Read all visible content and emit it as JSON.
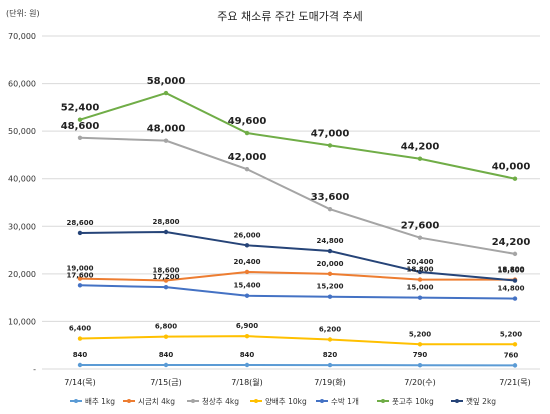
{
  "chart_data": {
    "type": "line",
    "title": "주요 채소류 주간 도매가격 추세",
    "unit_label": "(단위: 원)",
    "xlabel": "",
    "ylabel": "",
    "categories": [
      "7/14(목)",
      "7/15(금)",
      "7/18(월)",
      "7/19(화)",
      "7/20(수)",
      "7/21(목)"
    ],
    "ylim": [
      0,
      70000
    ],
    "yticks": [
      0,
      10000,
      20000,
      30000,
      40000,
      50000,
      60000,
      70000
    ],
    "ytick_labels": [
      "-",
      "10,000",
      "20,000",
      "30,000",
      "40,000",
      "50,000",
      "60,000",
      "70,000"
    ],
    "grid": true,
    "legend_position": "bottom",
    "series": [
      {
        "name": "배추 1kg",
        "color": "#5b9bd5",
        "values": [
          840,
          840,
          840,
          820,
          790,
          760
        ],
        "labels": [
          "840",
          "840",
          "840",
          "820",
          "790",
          "760"
        ]
      },
      {
        "name": "시금치 4kg",
        "color": "#ed7d31",
        "values": [
          19000,
          18600,
          20400,
          20000,
          18800,
          18800
        ],
        "labels": [
          "19,000",
          "18,600",
          "20,400",
          "20,000",
          "18,800",
          "18,800"
        ]
      },
      {
        "name": "청상추 4kg",
        "color": "#a5a5a5",
        "values": [
          48600,
          48000,
          42000,
          33600,
          27600,
          24200
        ],
        "labels": [
          "48,600",
          "48,000",
          "42,000",
          "33,600",
          "27,600",
          "24,200"
        ]
      },
      {
        "name": "양배추 10kg",
        "color": "#ffc000",
        "values": [
          6400,
          6800,
          6900,
          6200,
          5200,
          5200
        ],
        "labels": [
          "6,400",
          "6,800",
          "6,900",
          "6,200",
          "5,200",
          "5,200"
        ]
      },
      {
        "name": "수박 1개",
        "color": "#4472c4",
        "values": [
          17600,
          17200,
          15400,
          15200,
          15000,
          14800
        ],
        "labels": [
          "17,600",
          "17,200",
          "15,400",
          "15,200",
          "15,000",
          "14,800"
        ]
      },
      {
        "name": "풋고추 10kg",
        "color": "#70ad47",
        "values": [
          52400,
          58000,
          49600,
          47000,
          44200,
          40000
        ],
        "labels": [
          "52,400",
          "58,000",
          "49,600",
          "47,000",
          "44,200",
          "40,000"
        ]
      },
      {
        "name": "깻잎 2kg",
        "color": "#264478",
        "values": [
          28600,
          28800,
          26000,
          24800,
          20400,
          18600
        ],
        "labels": [
          "28,600",
          "28,800",
          "26,000",
          "24,800",
          "20,400",
          "18,600"
        ]
      }
    ]
  }
}
